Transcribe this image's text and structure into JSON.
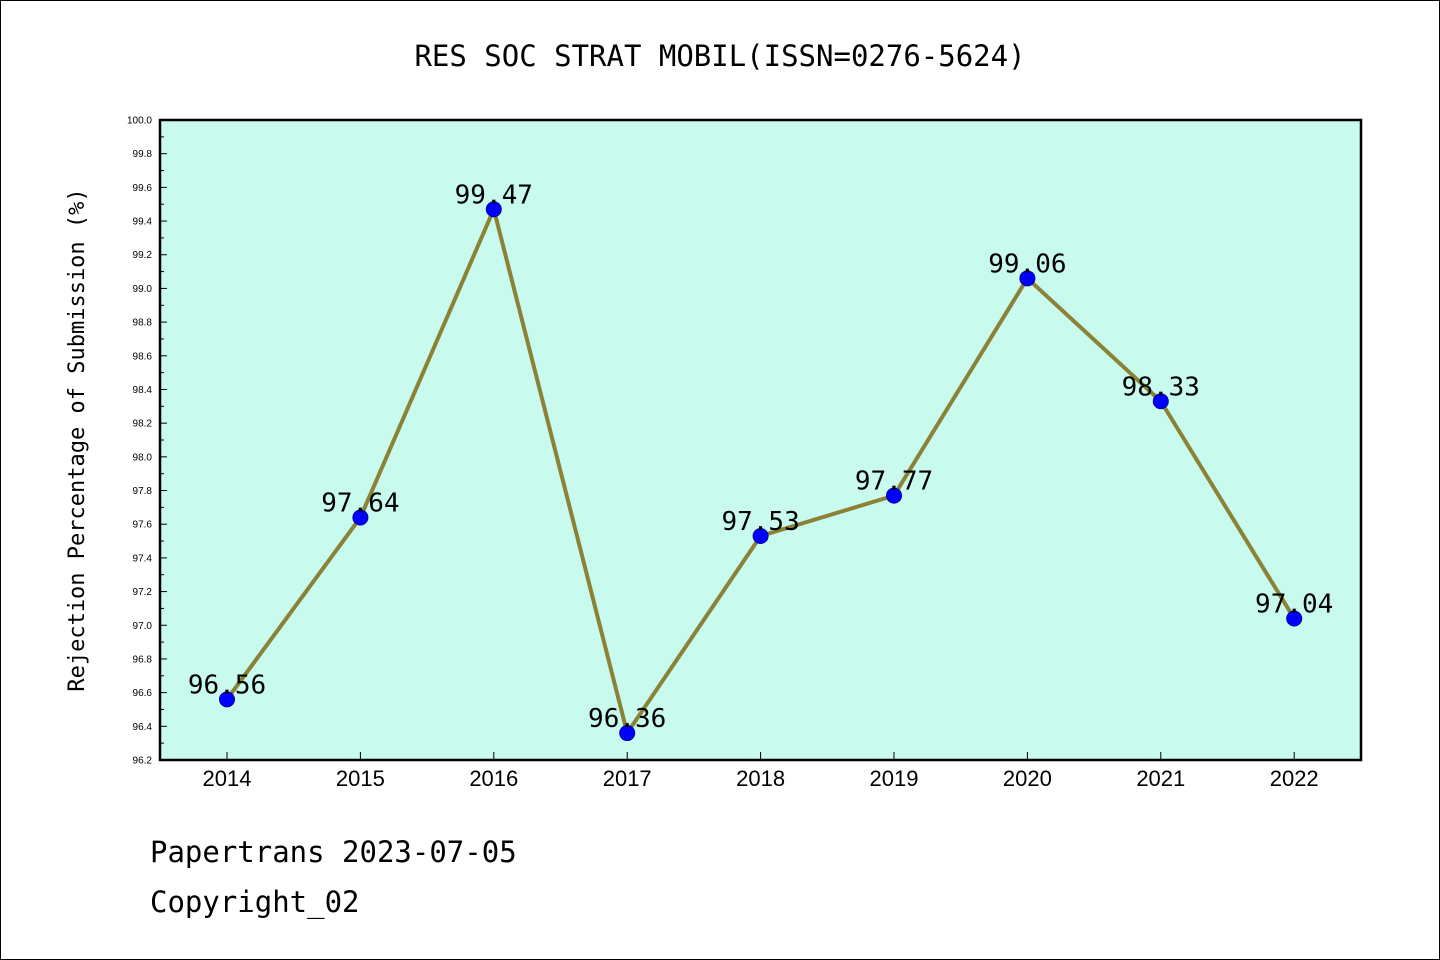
{
  "chart_data": {
    "type": "line",
    "title": "RES SOC STRAT MOBIL(ISSN=0276-5624)",
    "xlabel": "",
    "ylabel": "Rejection Percentage of Submission (%)",
    "categories": [
      "2014",
      "2015",
      "2016",
      "2017",
      "2018",
      "2019",
      "2020",
      "2021",
      "2022"
    ],
    "series": [
      {
        "values": [
          96.56,
          97.64,
          99.47,
          96.36,
          97.53,
          97.77,
          99.06,
          98.33,
          97.04
        ]
      }
    ],
    "data_labels": [
      "96.56",
      "97.64",
      "99.47",
      "96.36",
      "97.53",
      "97.77",
      "99.06",
      "98.33",
      "97.04"
    ],
    "ylim": [
      96.2,
      100.0
    ],
    "yticks": [
      "96.2",
      "96.4",
      "96.6",
      "96.8",
      "97.0",
      "97.2",
      "97.4",
      "97.6",
      "97.8",
      "98.0",
      "98.2",
      "98.4",
      "98.6",
      "98.8",
      "99.0",
      "99.2",
      "99.4",
      "99.6",
      "99.8",
      "100.0"
    ],
    "grid": false,
    "colors": {
      "plot_background": "#c8faee",
      "line": "#8b8236",
      "marker": "#0000ff"
    }
  },
  "footer": {
    "line1": "Papertrans 2023-07-05",
    "line2": "Copyright_02"
  }
}
